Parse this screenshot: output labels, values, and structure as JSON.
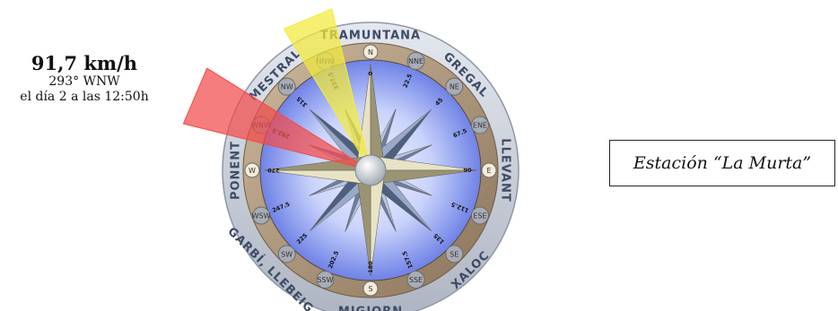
{
  "reading": {
    "speed": "91,7 km/h",
    "direction": "293° WNW",
    "date": "el día 2 a las 12:50h",
    "direction_degrees": 293
  },
  "gust": {
    "direction_degrees": 337.5
  },
  "station": {
    "prefix": "Estación ",
    "name": "“La Murta”"
  },
  "winds": [
    {
      "name": "TRAMUNTANA",
      "angle": 0
    },
    {
      "name": "GREGAL",
      "angle": 45
    },
    {
      "name": "LLEVANT",
      "angle": 90
    },
    {
      "name": "XALOC",
      "angle": 135
    },
    {
      "name": "MIGJORN",
      "angle": 180
    },
    {
      "name": "GARBÍ, LLEBEIG",
      "angle": 225
    },
    {
      "name": "PONENT",
      "angle": 270
    },
    {
      "name": "MESTRAL",
      "angle": 315
    }
  ],
  "points": [
    {
      "abbr": "N",
      "deg": "0",
      "angle": 0
    },
    {
      "abbr": "NNE",
      "deg": "22.5",
      "angle": 22.5
    },
    {
      "abbr": "NE",
      "deg": "45",
      "angle": 45
    },
    {
      "abbr": "ENE",
      "deg": "67.5",
      "angle": 67.5
    },
    {
      "abbr": "E",
      "deg": "90",
      "angle": 90
    },
    {
      "abbr": "ESE",
      "deg": "112.5",
      "angle": 112.5
    },
    {
      "abbr": "SE",
      "deg": "135",
      "angle": 135
    },
    {
      "abbr": "SSE",
      "deg": "157.5",
      "angle": 157.5
    },
    {
      "abbr": "S",
      "deg": "180",
      "angle": 180
    },
    {
      "abbr": "SSW",
      "deg": "202.5",
      "angle": 202.5
    },
    {
      "abbr": "SW",
      "deg": "225",
      "angle": 225
    },
    {
      "abbr": "WSW",
      "deg": "247.5",
      "angle": 247.5
    },
    {
      "abbr": "W",
      "deg": "270",
      "angle": 270
    },
    {
      "abbr": "WNW",
      "deg": "292.5",
      "angle": 292.5
    },
    {
      "abbr": "NW",
      "deg": "315",
      "angle": 315
    },
    {
      "abbr": "NNW",
      "deg": "337.5",
      "angle": 337.5
    }
  ],
  "colors": {
    "reading_sector": "#f24b4b",
    "gust_sector": "#f2ea3c",
    "ring": "#b59b7c",
    "outer_ring": "#c9ced8"
  }
}
